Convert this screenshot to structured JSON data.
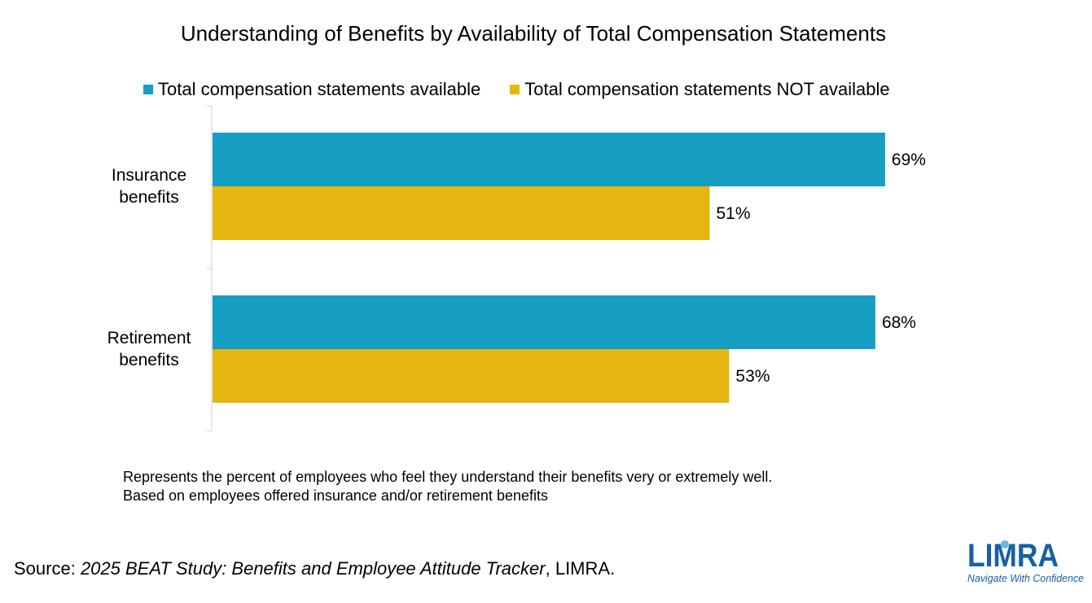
{
  "chart_data": {
    "type": "bar",
    "orientation": "horizontal",
    "title": "Understanding of Benefits by Availability of Total Compensation Statements",
    "categories": [
      [
        "Insurance",
        "benefits"
      ],
      [
        "Retirement",
        "benefits"
      ]
    ],
    "series": [
      {
        "name": "Total compensation statements available",
        "color": "#169EC3",
        "values": [
          69,
          68
        ],
        "labels": [
          "69%",
          "68%"
        ]
      },
      {
        "name": "Total compensation statements NOT available",
        "color": "#E6B711",
        "values": [
          51,
          53
        ],
        "labels": [
          "51%",
          "53%"
        ]
      }
    ],
    "xlim": [
      0,
      80
    ],
    "grid": false,
    "legend_position": "top"
  },
  "notes": [
    "Represents the percent of employees who feel they understand their benefits very or extremely well.",
    "Based on employees offered insurance and/or retirement benefits"
  ],
  "source": {
    "prefix": "Source: ",
    "study": "2025 BEAT Study: Benefits and Employee Attitude Tracker",
    "suffix": ", LIMRA."
  },
  "logo": {
    "wordmark": "LIMRA",
    "tagline": "Navigate With Confidence",
    "color": "#1660A8"
  }
}
